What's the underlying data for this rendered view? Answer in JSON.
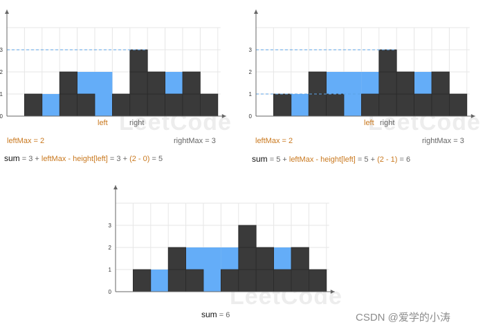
{
  "colors": {
    "bar": "#3a3a3a",
    "water": "#64adf8",
    "grid": "#e6e6e6",
    "axis": "#666666",
    "dash": "#5aa2e6",
    "accent": "#c9781e",
    "text": "#666666"
  },
  "watermark_text": "LeetCode",
  "credit": "CSDN @爱学的小涛",
  "panels": [
    {
      "chart_data": {
        "type": "bar",
        "heights": [
          0,
          1,
          0,
          2,
          1,
          0,
          1,
          3,
          2,
          1,
          2,
          1
        ],
        "water": [
          0,
          0,
          1,
          0,
          1,
          2,
          0,
          0,
          0,
          1,
          0,
          0
        ],
        "y_ticks": [
          0,
          1,
          2,
          3
        ],
        "dashed_y": [
          3
        ],
        "dashed_left_y": 0
      },
      "labels": {
        "left": "left",
        "right": "right",
        "leftMax": "leftMax = 2",
        "rightMax": "rightMax = 3",
        "sum_word": "sum",
        "sum_a": " = 3 + ",
        "sum_b": "leftMax - height[left]",
        "sum_c": " = 3 + ",
        "sum_d": "(2 - 0)",
        "sum_e": " = 5"
      }
    },
    {
      "chart_data": {
        "type": "bar",
        "heights": [
          0,
          1,
          0,
          2,
          1,
          0,
          1,
          3,
          2,
          1,
          2,
          1
        ],
        "water": [
          0,
          0,
          1,
          0,
          1,
          2,
          1,
          0,
          0,
          1,
          0,
          0
        ],
        "y_ticks": [
          0,
          1,
          2,
          3
        ],
        "dashed_y": [
          3
        ],
        "dashed_left_y": 1
      },
      "labels": {
        "left": "left",
        "right": "right",
        "leftMax": "leftMax = 2",
        "rightMax": "rightMax = 3",
        "sum_word": "sum",
        "sum_a": " = 5 + ",
        "sum_b": "leftMax - height[left]",
        "sum_c": " = 5 + ",
        "sum_d": "(2 - 1)",
        "sum_e": " = 6"
      }
    },
    {
      "chart_data": {
        "type": "bar",
        "heights": [
          0,
          1,
          0,
          2,
          1,
          0,
          1,
          3,
          2,
          1,
          2,
          1
        ],
        "water": [
          0,
          0,
          1,
          0,
          1,
          2,
          1,
          0,
          0,
          1,
          0,
          0
        ],
        "y_ticks": [
          0,
          1,
          2,
          3
        ],
        "dashed_y": [],
        "dashed_left_y": null
      },
      "labels": {
        "sum_word": "sum",
        "sum_value": "= 6"
      }
    }
  ]
}
